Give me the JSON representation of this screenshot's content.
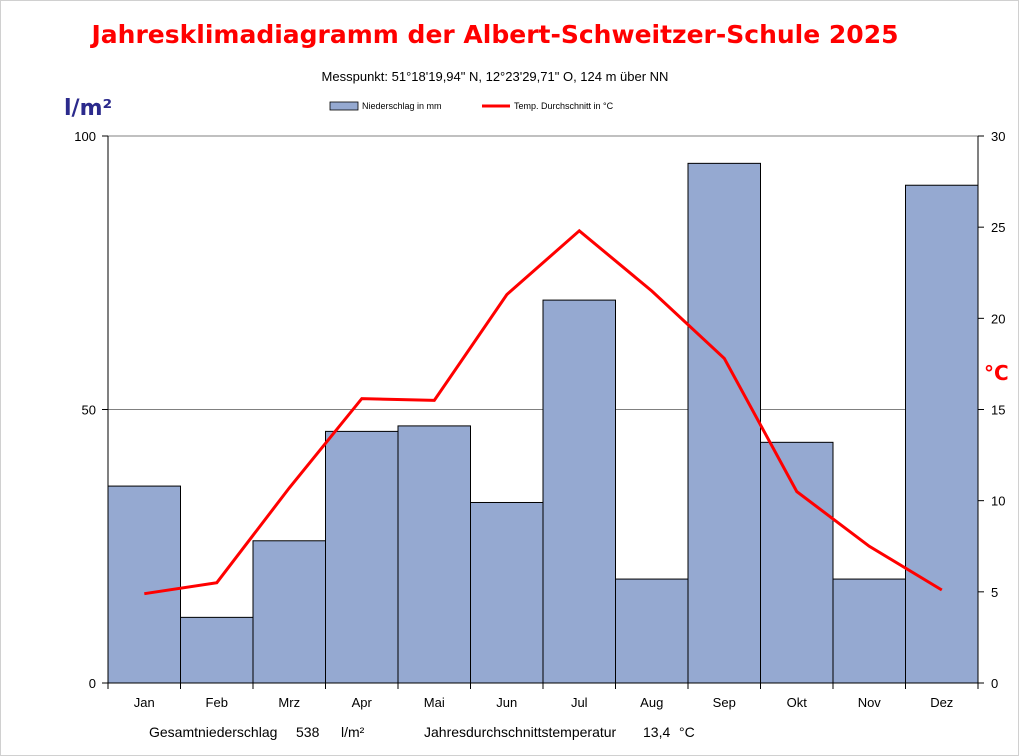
{
  "chart_data": {
    "type": "bar",
    "title": "Jahresklimadiagramm der Albert-Schweitzer-Schule 2025",
    "subtitle": "Messpunkt:  51°18'19,94\" N,  12°23'29,71\" O,  124 m über NN",
    "categories": [
      "Jan",
      "Feb",
      "Mrz",
      "Apr",
      "Mai",
      "Jun",
      "Jul",
      "Aug",
      "Sep",
      "Okt",
      "Nov",
      "Dez"
    ],
    "series": [
      {
        "name": "Niederschlag in mm",
        "type": "bar",
        "axis": "left",
        "color": "#95a9d1",
        "values": [
          36,
          12,
          26,
          46,
          47,
          33,
          70,
          19,
          95,
          44,
          19,
          91
        ]
      },
      {
        "name": "Temp. Durchschnitt in °C",
        "type": "line",
        "axis": "right",
        "color": "#ff0000",
        "values": [
          4.9,
          5.5,
          10.7,
          15.6,
          15.5,
          21.3,
          24.8,
          21.5,
          17.8,
          10.5,
          7.5,
          5.1
        ]
      }
    ],
    "yleft": {
      "label": "l/m²",
      "min": 0,
      "max": 100,
      "ticks": [
        0,
        50,
        100
      ]
    },
    "yright": {
      "label": "°C",
      "min": 0,
      "max": 30,
      "ticks": [
        0,
        5,
        10,
        15,
        20,
        25,
        30
      ]
    },
    "grid": "horizontal at 50",
    "legend_position": "top"
  },
  "footer": {
    "precip_label": "Gesamtniederschlag",
    "precip_value": "538",
    "precip_unit": "l/m²",
    "temp_label": "Jahresdurchschnittstemperatur",
    "temp_value": "13,4",
    "temp_unit": "°C"
  }
}
